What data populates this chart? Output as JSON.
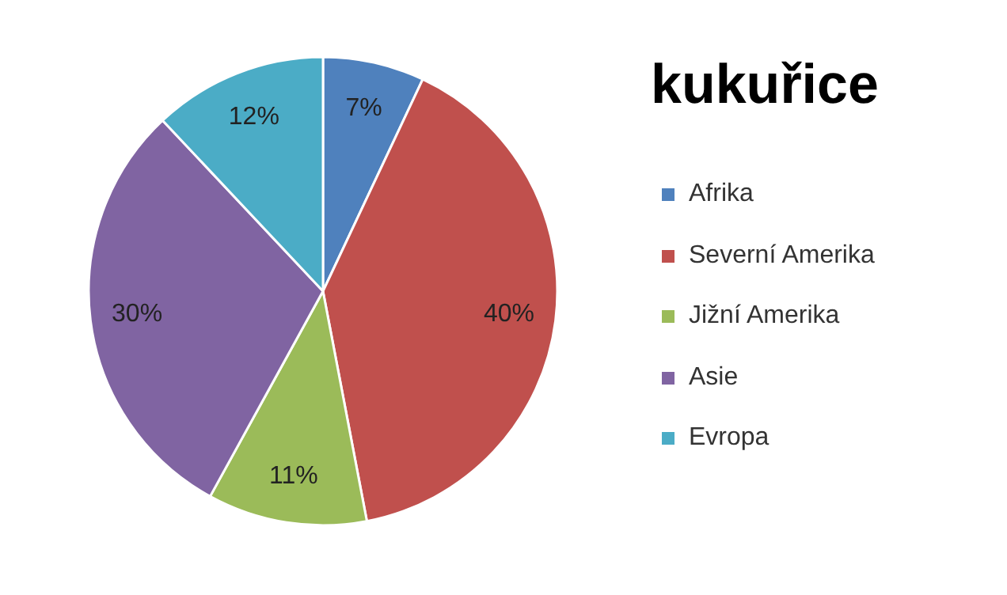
{
  "chart_data": {
    "type": "pie",
    "title": "kukuřice",
    "categories": [
      "Afrika",
      "Severní Amerika",
      "Jižní Amerika",
      "Asie",
      "Evropa"
    ],
    "values": [
      7,
      40,
      11,
      30,
      12
    ],
    "value_labels": [
      "7%",
      "40%",
      "11%",
      "30%",
      "12%"
    ],
    "colors": [
      "#4f81bd",
      "#c0504d",
      "#9bbb59",
      "#8064a2",
      "#4bacc6"
    ],
    "legend": "right"
  }
}
